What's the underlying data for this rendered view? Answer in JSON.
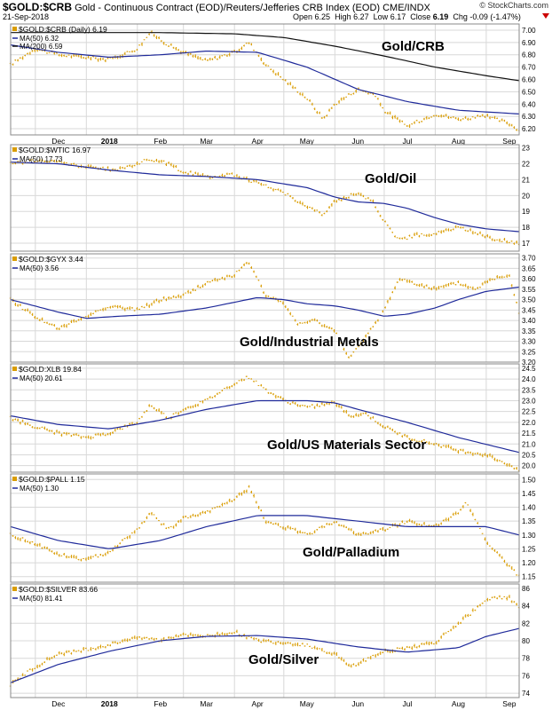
{
  "header": {
    "symbol": "$GOLD:$CRB",
    "description": "Gold - Continuous Contract (EOD)/Reuters/Jefferies CRB Index (EOD)  CME/INDX",
    "date": "21-Sep-2018",
    "open_label": "Open",
    "open": "6.25",
    "high_label": "High",
    "high": "6.27",
    "low_label": "Low",
    "low": "6.17",
    "close_label": "Close",
    "close": "6.19",
    "chg_label": "Chg",
    "chg": "-0.09 (-1.47%)",
    "brand": "© StockCharts.com"
  },
  "colors": {
    "price": "#d99c00",
    "ma50": "#1f2a9a",
    "ma200": "#111111",
    "grid": "#d8d8d8",
    "border": "#888888",
    "change_marker": "#cc0000"
  },
  "x_labels": [
    "Dec",
    "2018",
    "Feb",
    "Mar",
    "Apr",
    "May",
    "Jun",
    "Jul",
    "Aug",
    "Sep"
  ],
  "date_range": [
    "2017-11-16",
    "2018-09-21"
  ],
  "chart_data": [
    {
      "type": "bar",
      "legend": "$GOLD:$CRB (Daily) 6.19",
      "annotation": "Gold/CRB",
      "ylim": [
        6.15,
        7.05
      ],
      "ticks": [
        "7.00",
        "6.90",
        "6.80",
        "6.70",
        "6.60",
        "6.50",
        "6.40",
        "6.30",
        "6.20"
      ],
      "price": [
        [
          "Nov 16",
          6.72
        ],
        [
          "Dec 1",
          6.85
        ],
        [
          "Dec 15",
          6.8
        ],
        [
          "Jan 1",
          6.78
        ],
        [
          "Jan 15",
          6.76
        ],
        [
          "Feb 1",
          6.85
        ],
        [
          "Feb 9",
          6.98
        ],
        [
          "Feb 20",
          6.88
        ],
        [
          "Mar 1",
          6.82
        ],
        [
          "Mar 15",
          6.75
        ],
        [
          "Apr 1",
          6.82
        ],
        [
          "Apr 10",
          6.9
        ],
        [
          "Apr 20",
          6.72
        ],
        [
          "May 1",
          6.6
        ],
        [
          "May 15",
          6.45
        ],
        [
          "May 25",
          6.28
        ],
        [
          "Jun 1",
          6.4
        ],
        [
          "Jun 15",
          6.52
        ],
        [
          "Jun 25",
          6.48
        ],
        [
          "Jul 1",
          6.35
        ],
        [
          "Jul 15",
          6.22
        ],
        [
          "Aug 1",
          6.32
        ],
        [
          "Aug 15",
          6.28
        ],
        [
          "Sep 1",
          6.3
        ],
        [
          "Sep 14",
          6.25
        ],
        [
          "Sep 21",
          6.19
        ]
      ],
      "series": [
        {
          "name": "MA(50) 6.32",
          "values": [
            [
              "Nov 16",
              6.88
            ],
            [
              "Dec 15",
              6.82
            ],
            [
              "Jan 15",
              6.78
            ],
            [
              "Feb 15",
              6.8
            ],
            [
              "Mar 15",
              6.83
            ],
            [
              "Apr 15",
              6.82
            ],
            [
              "May 15",
              6.7
            ],
            [
              "Jun 15",
              6.52
            ],
            [
              "Jul 15",
              6.42
            ],
            [
              "Aug 15",
              6.35
            ],
            [
              "Sep 21",
              6.32
            ]
          ]
        },
        {
          "name": "MA(200) 6.59",
          "values": [
            [
              "Nov 16",
              6.98
            ],
            [
              "Jan 1",
              6.98
            ],
            [
              "Feb 15",
              6.98
            ],
            [
              "Apr 1",
              6.97
            ],
            [
              "May 1",
              6.94
            ],
            [
              "Jun 1",
              6.87
            ],
            [
              "Jul 1",
              6.79
            ],
            [
              "Aug 1",
              6.7
            ],
            [
              "Sep 1",
              6.63
            ],
            [
              "Sep 21",
              6.59
            ]
          ]
        }
      ]
    },
    {
      "type": "bar",
      "legend": "$GOLD:$WTIC 16.97",
      "annotation": "Gold/Oil",
      "ylim": [
        16.5,
        23.2
      ],
      "ticks": [
        "23",
        "22",
        "21",
        "20",
        "19",
        "18",
        "17"
      ],
      "price": [
        [
          "Nov 16",
          22.0
        ],
        [
          "Dec 1",
          22.2
        ],
        [
          "Dec 15",
          22.1
        ],
        [
          "Jan 1",
          21.8
        ],
        [
          "Jan 20",
          21.6
        ],
        [
          "Feb 9",
          22.3
        ],
        [
          "Feb 20",
          22.0
        ],
        [
          "Mar 1",
          21.5
        ],
        [
          "Mar 15",
          21.2
        ],
        [
          "Apr 1",
          21.3
        ],
        [
          "Apr 15",
          20.8
        ],
        [
          "May 1",
          20.2
        ],
        [
          "May 15",
          19.3
        ],
        [
          "May 25",
          18.8
        ],
        [
          "Jun 1",
          19.6
        ],
        [
          "Jun 15",
          20.2
        ],
        [
          "Jun 25",
          19.5
        ],
        [
          "Jul 1",
          18.4
        ],
        [
          "Jul 10",
          17.2
        ],
        [
          "Jul 20",
          17.5
        ],
        [
          "Aug 1",
          17.6
        ],
        [
          "Aug 15",
          18.0
        ],
        [
          "Aug 25",
          17.7
        ],
        [
          "Sep 5",
          17.3
        ],
        [
          "Sep 21",
          16.97
        ]
      ],
      "series": [
        {
          "name": "MA(50) 17.73",
          "values": [
            [
              "Nov 16",
              22.1
            ],
            [
              "Dec 15",
              22.0
            ],
            [
              "Jan 15",
              21.6
            ],
            [
              "Feb 15",
              21.3
            ],
            [
              "Mar 15",
              21.2
            ],
            [
              "Apr 15",
              21.0
            ],
            [
              "May 15",
              20.5
            ],
            [
              "Jun 1",
              19.9
            ],
            [
              "Jun 15",
              19.6
            ],
            [
              "Jul 1",
              19.5
            ],
            [
              "Jul 15",
              19.2
            ],
            [
              "Aug 1",
              18.6
            ],
            [
              "Aug 15",
              18.2
            ],
            [
              "Sep 1",
              17.9
            ],
            [
              "Sep 21",
              17.73
            ]
          ]
        }
      ]
    },
    {
      "type": "bar",
      "legend": "$GOLD:$GYX 3.44",
      "annotation": "Gold/Industrial Metals",
      "ylim": [
        3.2,
        3.72
      ],
      "ticks": [
        "3.70",
        "3.65",
        "3.60",
        "3.55",
        "3.50",
        "3.45",
        "3.40",
        "3.35",
        "3.30",
        "3.25",
        "3.20"
      ],
      "price": [
        [
          "Nov 16",
          3.5
        ],
        [
          "Dec 1",
          3.42
        ],
        [
          "Dec 15",
          3.36
        ],
        [
          "Jan 1",
          3.42
        ],
        [
          "Jan 15",
          3.47
        ],
        [
          "Feb 1",
          3.45
        ],
        [
          "Feb 15",
          3.5
        ],
        [
          "Mar 1",
          3.52
        ],
        [
          "Mar 15",
          3.58
        ],
        [
          "Apr 1",
          3.62
        ],
        [
          "Apr 10",
          3.68
        ],
        [
          "Apr 20",
          3.52
        ],
        [
          "May 1",
          3.48
        ],
        [
          "May 10",
          3.38
        ],
        [
          "May 20",
          3.4
        ],
        [
          "Jun 1",
          3.35
        ],
        [
          "Jun 10",
          3.22
        ],
        [
          "Jun 20",
          3.32
        ],
        [
          "Jul 1",
          3.45
        ],
        [
          "Jul 10",
          3.6
        ],
        [
          "Jul 20",
          3.58
        ],
        [
          "Aug 1",
          3.55
        ],
        [
          "Aug 15",
          3.58
        ],
        [
          "Aug 25",
          3.55
        ],
        [
          "Sep 5",
          3.6
        ],
        [
          "Sep 15",
          3.62
        ],
        [
          "Sep 21",
          3.44
        ]
      ],
      "series": [
        {
          "name": "MA(50) 3.56",
          "values": [
            [
              "Nov 16",
              3.5
            ],
            [
              "Dec 15",
              3.44
            ],
            [
              "Jan 1",
              3.41
            ],
            [
              "Jan 20",
              3.42
            ],
            [
              "Feb 15",
              3.43
            ],
            [
              "Mar 15",
              3.46
            ],
            [
              "Apr 15",
              3.51
            ],
            [
              "May 1",
              3.5
            ],
            [
              "May 15",
              3.48
            ],
            [
              "Jun 1",
              3.47
            ],
            [
              "Jun 15",
              3.45
            ],
            [
              "Jul 1",
              3.42
            ],
            [
              "Jul 15",
              3.43
            ],
            [
              "Aug 1",
              3.46
            ],
            [
              "Aug 15",
              3.5
            ],
            [
              "Sep 1",
              3.54
            ],
            [
              "Sep 21",
              3.56
            ]
          ]
        }
      ]
    },
    {
      "type": "bar",
      "legend": "$GOLD:XLB 19.84",
      "annotation": "Gold/US Materials Sector",
      "ylim": [
        19.7,
        24.7
      ],
      "ticks": [
        "24.5",
        "24.0",
        "23.5",
        "23.0",
        "22.5",
        "22.0",
        "21.5",
        "21.0",
        "20.5",
        "20.0"
      ],
      "price": [
        [
          "Nov 16",
          22.2
        ],
        [
          "Dec 1",
          21.8
        ],
        [
          "Dec 15",
          21.5
        ],
        [
          "Jan 1",
          21.3
        ],
        [
          "Jan 15",
          21.5
        ],
        [
          "Feb 1",
          22.0
        ],
        [
          "Feb 9",
          22.8
        ],
        [
          "Feb 20",
          22.2
        ],
        [
          "Mar 1",
          22.6
        ],
        [
          "Mar 15",
          23.0
        ],
        [
          "Apr 1",
          23.8
        ],
        [
          "Apr 10",
          24.1
        ],
        [
          "Apr 20",
          23.5
        ],
        [
          "May 1",
          23.0
        ],
        [
          "May 15",
          22.7
        ],
        [
          "Jun 1",
          22.9
        ],
        [
          "Jun 10",
          22.3
        ],
        [
          "Jun 20",
          22.4
        ],
        [
          "Jul 1",
          21.8
        ],
        [
          "Jul 15",
          21.3
        ],
        [
          "Aug 1",
          21.0
        ],
        [
          "Aug 15",
          20.7
        ],
        [
          "Sep 1",
          20.5
        ],
        [
          "Sep 21",
          19.84
        ]
      ],
      "series": [
        {
          "name": "MA(50) 20.61",
          "values": [
            [
              "Nov 16",
              22.3
            ],
            [
              "Dec 15",
              21.9
            ],
            [
              "Jan 15",
              21.7
            ],
            [
              "Feb 15",
              22.1
            ],
            [
              "Mar 15",
              22.6
            ],
            [
              "Apr 15",
              23.0
            ],
            [
              "May 15",
              23.0
            ],
            [
              "Jun 1",
              22.9
            ],
            [
              "Jun 15",
              22.6
            ],
            [
              "Jul 15",
              22.0
            ],
            [
              "Aug 15",
              21.3
            ],
            [
              "Sep 21",
              20.61
            ]
          ]
        }
      ]
    },
    {
      "type": "bar",
      "legend": "$GOLD:$PALL 1.15",
      "annotation": "Gold/Palladium",
      "ylim": [
        1.13,
        1.52
      ],
      "ticks": [
        "1.50",
        "1.45",
        "1.40",
        "1.35",
        "1.30",
        "1.25",
        "1.20",
        "1.15"
      ],
      "price": [
        [
          "Nov 16",
          1.3
        ],
        [
          "Dec 1",
          1.27
        ],
        [
          "Dec 15",
          1.23
        ],
        [
          "Jan 1",
          1.21
        ],
        [
          "Jan 15",
          1.24
        ],
        [
          "Feb 1",
          1.32
        ],
        [
          "Feb 9",
          1.38
        ],
        [
          "Feb 20",
          1.32
        ],
        [
          "Mar 1",
          1.36
        ],
        [
          "Mar 15",
          1.38
        ],
        [
          "Apr 1",
          1.43
        ],
        [
          "Apr 10",
          1.47
        ],
        [
          "Apr 20",
          1.35
        ],
        [
          "May 1",
          1.33
        ],
        [
          "May 15",
          1.3
        ],
        [
          "Jun 1",
          1.35
        ],
        [
          "Jun 15",
          1.3
        ],
        [
          "Jul 1",
          1.32
        ],
        [
          "Jul 15",
          1.35
        ],
        [
          "Aug 1",
          1.33
        ],
        [
          "Aug 15",
          1.38
        ],
        [
          "Aug 20",
          1.42
        ],
        [
          "Sep 1",
          1.28
        ],
        [
          "Sep 10",
          1.22
        ],
        [
          "Sep 21",
          1.15
        ]
      ],
      "series": [
        {
          "name": "MA(50) 1.30",
          "values": [
            [
              "Nov 16",
              1.33
            ],
            [
              "Dec 15",
              1.28
            ],
            [
              "Jan 15",
              1.25
            ],
            [
              "Feb 15",
              1.28
            ],
            [
              "Mar 15",
              1.33
            ],
            [
              "Apr 15",
              1.37
            ],
            [
              "May 15",
              1.37
            ],
            [
              "Jun 15",
              1.35
            ],
            [
              "Jul 15",
              1.33
            ],
            [
              "Aug 15",
              1.33
            ],
            [
              "Sep 1",
              1.33
            ],
            [
              "Sep 21",
              1.3
            ]
          ]
        }
      ]
    },
    {
      "type": "bar",
      "legend": "$GOLD:$SILVER 83.66",
      "annotation": "Gold/Silver",
      "ylim": [
        73.5,
        86.5
      ],
      "ticks": [
        "86",
        "84",
        "82",
        "80",
        "78",
        "76",
        "74"
      ],
      "price": [
        [
          "Nov 16",
          75.0
        ],
        [
          "Dec 1",
          77.0
        ],
        [
          "Dec 15",
          78.5
        ],
        [
          "Jan 1",
          79.0
        ],
        [
          "Jan 15",
          79.5
        ],
        [
          "Feb 1",
          80.5
        ],
        [
          "Feb 15",
          80.0
        ],
        [
          "Mar 1",
          80.8
        ],
        [
          "Mar 15",
          80.5
        ],
        [
          "Apr 1",
          81.0
        ],
        [
          "Apr 15",
          80.0
        ],
        [
          "May 1",
          79.8
        ],
        [
          "May 15",
          79.5
        ],
        [
          "Jun 1",
          78.5
        ],
        [
          "Jun 10",
          77.0
        ],
        [
          "Jun 20",
          77.8
        ],
        [
          "Jul 1",
          78.8
        ],
        [
          "Jul 15",
          79.2
        ],
        [
          "Aug 1",
          79.8
        ],
        [
          "Aug 15",
          82.0
        ],
        [
          "Aug 25",
          83.5
        ],
        [
          "Sep 5",
          85.0
        ],
        [
          "Sep 15",
          85.0
        ],
        [
          "Sep 21",
          83.66
        ]
      ],
      "series": [
        {
          "name": "MA(50) 81.41",
          "values": [
            [
              "Nov 16",
              75.2
            ],
            [
              "Dec 15",
              77.3
            ],
            [
              "Jan 15",
              78.8
            ],
            [
              "Feb 15",
              80.0
            ],
            [
              "Mar 15",
              80.5
            ],
            [
              "Apr 15",
              80.6
            ],
            [
              "May 15",
              80.2
            ],
            [
              "Jun 15",
              79.3
            ],
            [
              "Jul 15",
              78.7
            ],
            [
              "Aug 15",
              79.2
            ],
            [
              "Sep 1",
              80.5
            ],
            [
              "Sep 21",
              81.41
            ]
          ]
        }
      ]
    }
  ]
}
